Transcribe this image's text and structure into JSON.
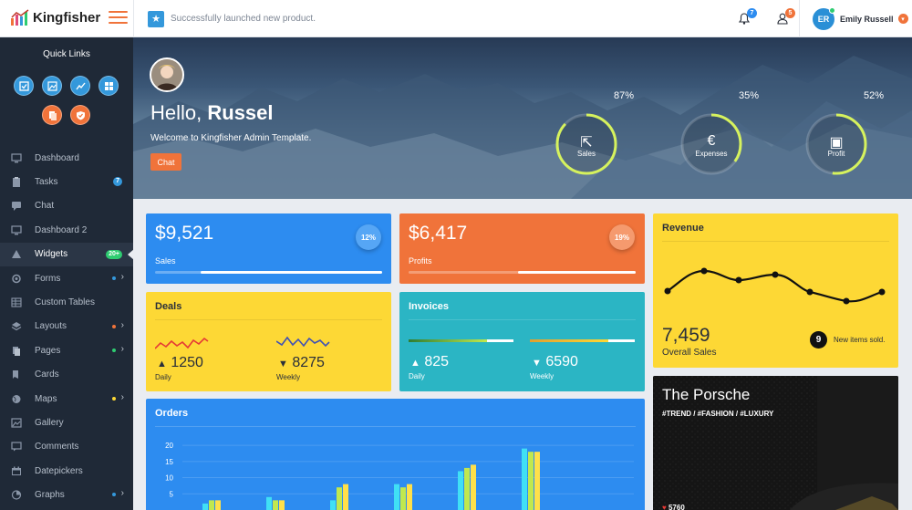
{
  "brand": {
    "name": "Kingfisher"
  },
  "header": {
    "notice": "Successfully launched new product.",
    "notifications_count": "7",
    "users_count": "5",
    "user_initials": "ER",
    "user_name": "Emily Russell"
  },
  "sidebar": {
    "quick_links_title": "Quick Links",
    "items": [
      {
        "label": "Dashboard",
        "icon": "monitor-icon"
      },
      {
        "label": "Tasks",
        "icon": "clipboard-icon",
        "badge": "7"
      },
      {
        "label": "Chat",
        "icon": "chat-icon"
      },
      {
        "label": "Dashboard 2",
        "icon": "monitor-icon"
      },
      {
        "label": "Widgets",
        "icon": "widgets-icon",
        "badge": "20+"
      },
      {
        "label": "Forms",
        "icon": "forms-icon"
      },
      {
        "label": "Custom Tables",
        "icon": "table-icon"
      },
      {
        "label": "Layouts",
        "icon": "layers-icon"
      },
      {
        "label": "Pages",
        "icon": "pages-icon"
      },
      {
        "label": "Cards",
        "icon": "cards-icon"
      },
      {
        "label": "Maps",
        "icon": "globe-icon"
      },
      {
        "label": "Gallery",
        "icon": "image-icon"
      },
      {
        "label": "Comments",
        "icon": "comment-icon"
      },
      {
        "label": "Datepickers",
        "icon": "calendar-icon"
      },
      {
        "label": "Graphs",
        "icon": "graph-icon"
      }
    ]
  },
  "hero": {
    "hello": "Hello,",
    "name": "Russel",
    "welcome": "Welcome to Kingfisher Admin Template.",
    "chat_button": "Chat",
    "gauges": [
      {
        "label": "Sales",
        "percent": "87%",
        "value": 0.87,
        "icon": "arrow-up-left-icon"
      },
      {
        "label": "Expenses",
        "percent": "35%",
        "value": 0.35,
        "icon": "euro-icon"
      },
      {
        "label": "Profit",
        "percent": "52%",
        "value": 0.52,
        "icon": "wallet-icon"
      }
    ]
  },
  "cards": {
    "sales": {
      "value": "$9,521",
      "label": "Sales",
      "percent": "12%",
      "progress": 0.8
    },
    "profits": {
      "value": "$6,417",
      "label": "Profits",
      "percent": "19%",
      "progress": 0.52
    },
    "revenue": {
      "title": "Revenue",
      "value": "7,459",
      "label": "Overall Sales",
      "new_count": "9",
      "new_label": "New items sold."
    },
    "deals": {
      "title": "Deals",
      "daily_value": "1250",
      "daily_label": "Daily",
      "weekly_value": "8275",
      "weekly_label": "Weekly"
    },
    "invoices": {
      "title": "Invoices",
      "daily_value": "825",
      "daily_label": "Daily",
      "daily_progress": 0.75,
      "weekly_value": "6590",
      "weekly_label": "Weekly",
      "weekly_progress": 0.75
    },
    "orders": {
      "title": "Orders"
    },
    "porsche": {
      "title": "The Porsche",
      "tags": "#TREND / #FASHION / #LUXURY",
      "count": "5760"
    }
  },
  "chart_data": {
    "type": "bar",
    "title": "Orders",
    "y_ticks": [
      "20",
      "15",
      "10",
      "5"
    ],
    "ylim": [
      0,
      22
    ],
    "series": [
      {
        "color": "#40e0f5",
        "values": [
          2,
          4,
          3,
          8,
          12,
          19
        ]
      },
      {
        "color": "#c0e84f",
        "values": [
          3,
          3,
          7,
          7,
          13,
          18
        ]
      },
      {
        "color": "#ffe04a",
        "values": [
          3,
          3,
          8,
          8,
          14,
          18
        ]
      }
    ]
  },
  "colors": {
    "orange": "#f0733a",
    "blue": "#2d8cf0",
    "yellow": "#fdd835",
    "teal": "#2bb5c4",
    "dark": "#1f2937"
  }
}
